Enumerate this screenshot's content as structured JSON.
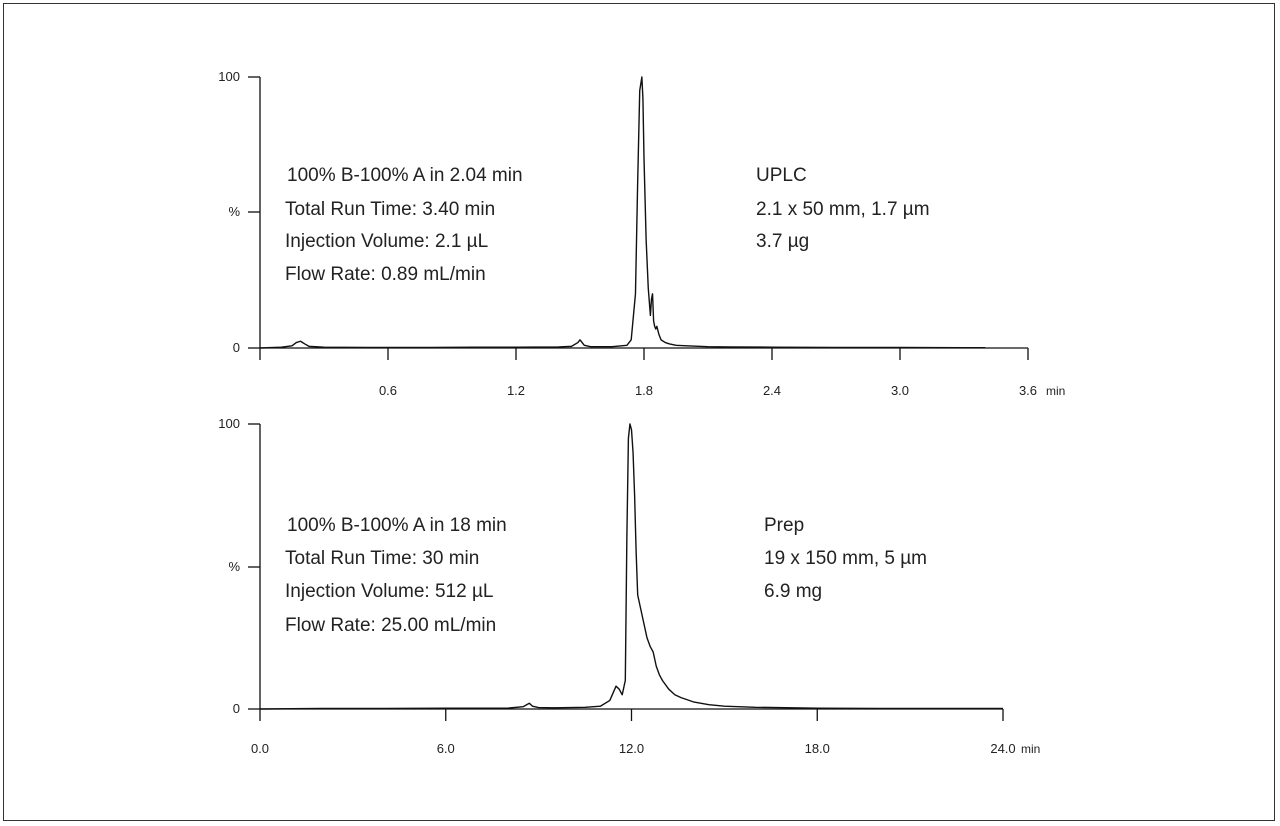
{
  "colors": {
    "trace": "#111111",
    "axis": "#111111",
    "text": "#222222",
    "border": "#333333"
  },
  "chart_data": [
    {
      "type": "line",
      "name": "uplc",
      "x_unit": "min",
      "xlim": [
        0.0,
        3.6
      ],
      "ylim": [
        0,
        100
      ],
      "x_ticks": [
        0.6,
        1.2,
        1.8,
        2.4,
        3.0,
        3.6
      ],
      "x_tick_labels": [
        "0.6",
        "1.2",
        "1.8",
        "2.4",
        "3.0",
        "3.6"
      ],
      "y_tick_labels": [
        "0",
        "%",
        "100"
      ],
      "annotations_left": [
        "100% B-100% A in 2.04 min",
        "Total Run Time:  3.40 min",
        "Injection Volume:  2.1 µL",
        "Flow Rate:  0.89 mL/min"
      ],
      "annotations_right": [
        "UPLC",
        "2.1 x 50 mm, 1.7 µm",
        "3.7 µg"
      ],
      "series": [
        {
          "x": [
            0.0,
            0.1,
            0.15,
            0.17,
            0.19,
            0.21,
            0.23,
            0.3,
            0.5,
            0.8,
            1.0,
            1.2,
            1.4,
            1.46,
            1.49,
            1.5,
            1.52,
            1.55,
            1.65,
            1.72,
            1.74,
            1.76,
            1.77,
            1.78,
            1.79,
            1.795,
            1.8,
            1.81,
            1.82,
            1.83,
            1.835,
            1.84,
            1.845,
            1.85,
            1.855,
            1.86,
            1.87,
            1.88,
            1.9,
            1.92,
            1.95,
            2.0,
            2.1,
            2.2,
            2.4,
            2.7,
            3.0,
            3.3,
            3.4
          ],
          "y": [
            0,
            0.3,
            0.8,
            2.0,
            2.5,
            1.5,
            0.6,
            0.3,
            0.2,
            0.2,
            0.3,
            0.3,
            0.4,
            0.6,
            2.0,
            3.0,
            1.0,
            0.5,
            0.5,
            1.0,
            3.0,
            20,
            60,
            95,
            100,
            92,
            70,
            40,
            22,
            12,
            18,
            20,
            10,
            8,
            7,
            8,
            5,
            3,
            2.0,
            1.5,
            1.0,
            0.8,
            0.5,
            0.4,
            0.3,
            0.2,
            0.2,
            0.1,
            0.1
          ]
        }
      ]
    },
    {
      "type": "line",
      "name": "prep",
      "x_unit": "min",
      "xlim": [
        0.0,
        24.0
      ],
      "ylim": [
        0,
        100
      ],
      "x_ticks": [
        0.0,
        6.0,
        12.0,
        18.0,
        24.0
      ],
      "x_tick_labels": [
        "0.0",
        "6.0",
        "12.0",
        "18.0",
        "24.0"
      ],
      "y_tick_labels": [
        "0",
        "%",
        "100"
      ],
      "annotations_left": [
        "100% B-100% A in 18 min",
        "Total Run Time:  30 min",
        "Injection Volume:  512 µL",
        "Flow Rate:  25.00 mL/min"
      ],
      "annotations_right": [
        "Prep",
        "19 x 150 mm, 5 µm",
        "6.9 mg"
      ],
      "series": [
        {
          "x": [
            0.0,
            2.0,
            4.0,
            6.0,
            8.0,
            8.5,
            8.7,
            8.8,
            9.0,
            9.5,
            10.5,
            11.0,
            11.3,
            11.5,
            11.6,
            11.7,
            11.8,
            11.85,
            11.9,
            11.95,
            12.0,
            12.05,
            12.1,
            12.15,
            12.2,
            12.3,
            12.4,
            12.5,
            12.6,
            12.7,
            12.8,
            12.9,
            13.0,
            13.2,
            13.4,
            13.6,
            14.0,
            14.5,
            15.0,
            16.0,
            18.0,
            20.0,
            22.0,
            24.0
          ],
          "y": [
            0,
            0.2,
            0.2,
            0.3,
            0.3,
            0.8,
            2.0,
            1.0,
            0.5,
            0.4,
            0.6,
            1.0,
            3.0,
            8.0,
            7.0,
            5.0,
            10,
            60,
            95,
            100,
            98,
            90,
            75,
            55,
            40,
            35,
            30,
            25,
            22,
            20,
            15,
            12,
            10,
            7,
            5,
            4,
            2.5,
            1.5,
            1.0,
            0.6,
            0.3,
            0.2,
            0.2,
            0.2
          ]
        }
      ]
    }
  ]
}
